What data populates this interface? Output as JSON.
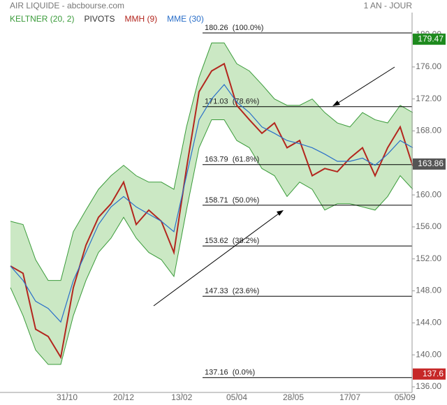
{
  "chart_data": {
    "type": "line",
    "title": "AIR LIQUIDE - abcbourse.com",
    "subtitle": "1 AN - JOUR",
    "x": [
      0,
      8,
      16,
      24,
      32,
      40,
      48,
      56,
      64,
      72,
      80,
      88,
      96,
      104,
      112,
      120,
      128,
      136,
      144,
      152,
      160,
      168,
      176,
      184,
      192,
      200,
      208,
      216,
      224,
      232,
      240,
      248,
      256
    ],
    "xlim": [
      0,
      256
    ],
    "xticks": [
      {
        "value": 36,
        "label": "31/10"
      },
      {
        "value": 72,
        "label": "20/12"
      },
      {
        "value": 109,
        "label": "13/02"
      },
      {
        "value": 144,
        "label": "05/04"
      },
      {
        "value": 180,
        "label": "28/05"
      },
      {
        "value": 216,
        "label": "17/07"
      },
      {
        "value": 251,
        "label": "05/09"
      }
    ],
    "ylim": [
      135.3,
      182.8
    ],
    "yticks": [
      {
        "value": 136,
        "label": "136.00"
      },
      {
        "value": 140,
        "label": "140.00"
      },
      {
        "value": 144,
        "label": "144.00"
      },
      {
        "value": 148,
        "label": "148.00"
      },
      {
        "value": 152,
        "label": "152.00"
      },
      {
        "value": 156,
        "label": "156.00"
      },
      {
        "value": 160,
        "label": "160.00"
      },
      {
        "value": 164,
        "label": "164.00"
      },
      {
        "value": 168,
        "label": "168.00"
      },
      {
        "value": 172,
        "label": "172.00"
      },
      {
        "value": 176,
        "label": "176.00"
      },
      {
        "value": 180,
        "label": "180.00"
      }
    ],
    "band": {
      "name": "KELTNER (20, 2)",
      "color": "#3a9b3a",
      "fill": "#b9e0b0",
      "upper": [
        156.7,
        156.3,
        151.9,
        149.3,
        149.3,
        155.4,
        158.1,
        160.7,
        162.4,
        163.7,
        162.4,
        161.6,
        161.6,
        160.7,
        168.5,
        174.7,
        179.0,
        179.0,
        176.4,
        175.5,
        173.8,
        172.0,
        171.2,
        171.2,
        172.0,
        170.3,
        169.0,
        168.5,
        170.3,
        169.4,
        169.0,
        171.2,
        170.3
      ],
      "lower": [
        148.4,
        144.9,
        140.6,
        138.8,
        138.8,
        144.9,
        149.3,
        152.8,
        154.6,
        157.2,
        154.6,
        152.8,
        151.9,
        149.8,
        158.1,
        165.9,
        169.4,
        169.4,
        166.8,
        165.9,
        163.3,
        162.4,
        159.8,
        161.6,
        160.7,
        158.1,
        158.9,
        158.9,
        158.5,
        158.1,
        159.8,
        162.4,
        160.7
      ]
    },
    "pivots": {
      "name": "PIVOTS",
      "color": "#000000",
      "levels": [
        {
          "value": 180.26,
          "label": "180.26  (100.0%)"
        },
        {
          "value": 171.03,
          "label": "171.03  (78.6%)"
        },
        {
          "value": 163.79,
          "label": "163.79  (61.8%)"
        },
        {
          "value": 158.71,
          "label": "158.71  (50.0%)"
        },
        {
          "value": 153.62,
          "label": "153.62  (38.2%)"
        },
        {
          "value": 147.33,
          "label": "147.33  (23.6%)"
        },
        {
          "value": 137.16,
          "label": "137.16  (0.0%)"
        }
      ]
    },
    "series": [
      {
        "name": "MMH (9)",
        "color": "#b3261e",
        "values": [
          151.1,
          150.2,
          143.2,
          142.3,
          139.7,
          148.4,
          153.7,
          157.2,
          158.9,
          161.6,
          156.3,
          158.1,
          156.7,
          152.8,
          163.3,
          172.9,
          175.5,
          176.4,
          171.2,
          169.4,
          167.7,
          169.0,
          165.9,
          166.8,
          162.4,
          163.3,
          162.9,
          164.6,
          165.9,
          162.4,
          165.9,
          168.5,
          163.6
        ]
      },
      {
        "name": "MME (30)",
        "color": "#2a6fc9",
        "values": [
          151.1,
          149.3,
          146.7,
          145.8,
          144.1,
          149.3,
          152.8,
          156.3,
          158.5,
          159.8,
          158.5,
          157.6,
          156.7,
          155.4,
          162.4,
          169.4,
          172.0,
          173.8,
          171.6,
          170.3,
          168.5,
          167.7,
          166.8,
          166.4,
          165.9,
          165.1,
          164.2,
          164.2,
          164.6,
          163.7,
          165.1,
          166.8,
          165.9
        ]
      }
    ],
    "price_tags": [
      {
        "value": 179.47,
        "color": "#1e8a1e"
      },
      {
        "value": 163.86,
        "color": "#555555"
      },
      {
        "value": 137.6,
        "color": "#c62828"
      }
    ]
  }
}
